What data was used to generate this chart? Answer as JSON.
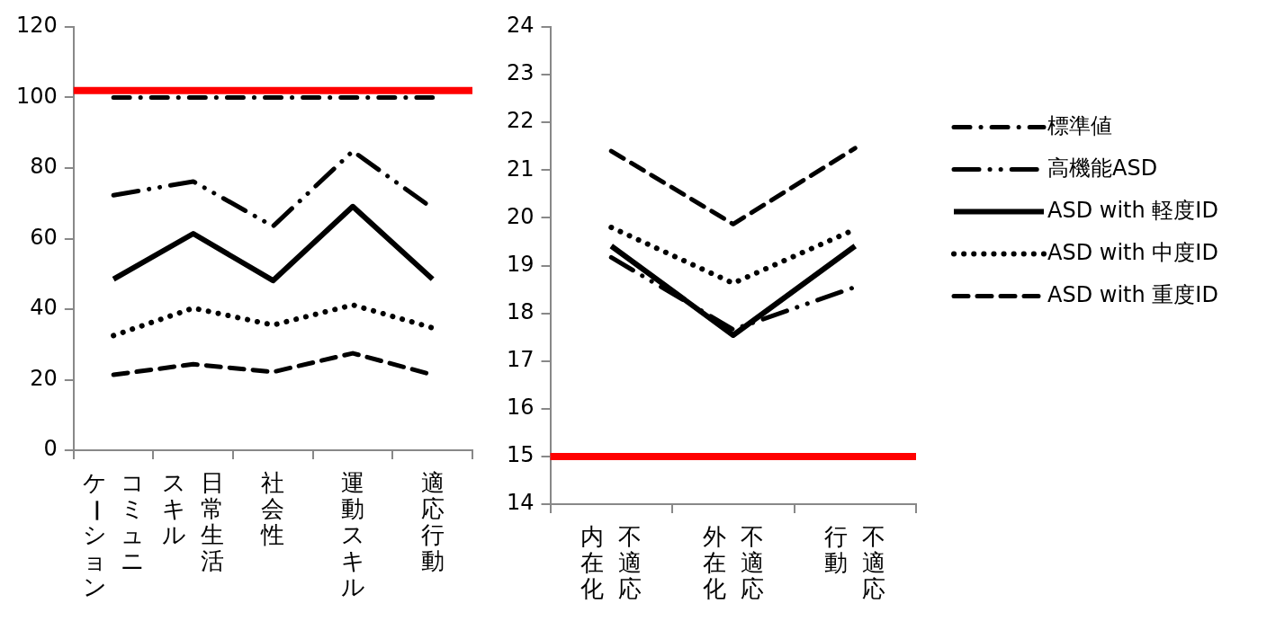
{
  "chart_data": [
    {
      "type": "line",
      "categories": [
        "コミュニケーション",
        "日常生活スキル",
        "社会性",
        "運動スキル",
        "適応行動"
      ],
      "ylim": [
        0,
        120
      ],
      "yticks": [
        0,
        20,
        40,
        60,
        80,
        100,
        120
      ],
      "grid": false,
      "legend": false,
      "ref_lines": [
        {
          "axis": "y",
          "value": 102,
          "color": "#ff0000"
        }
      ],
      "series": [
        {
          "color": "#000000",
          "line_style": "dashdot",
          "values": [
            100,
            100,
            100,
            100,
            100
          ]
        },
        {
          "color": "#000000",
          "line_style": "dashdotdot",
          "values": [
            72.3,
            76.2,
            63.5,
            84.8,
            68.6
          ]
        },
        {
          "color": "#000000",
          "line_style": "solid",
          "values": [
            48.5,
            61.4,
            48.1,
            69.1,
            48.5
          ]
        },
        {
          "color": "#000000",
          "line_style": "dotted",
          "values": [
            32.5,
            40.3,
            35.5,
            41.2,
            34.7
          ]
        },
        {
          "color": "#000000",
          "line_style": "dashed",
          "values": [
            21.4,
            24.4,
            22.2,
            27.5,
            21.4
          ]
        }
      ]
    },
    {
      "type": "line",
      "categories": [
        "不適応内在化",
        "不適応外在化",
        "不適応行動"
      ],
      "ylim": [
        14,
        24
      ],
      "yticks": [
        14,
        15,
        16,
        17,
        18,
        19,
        20,
        21,
        22,
        23,
        24
      ],
      "grid": false,
      "legend": "right",
      "ref_lines": [
        {
          "axis": "y",
          "value": 15,
          "color": "#ff0000"
        }
      ],
      "series": [
        {
          "name": "標準値",
          "color": "#000000",
          "line_style": "dashdot",
          "values": [
            null,
            null,
            null
          ]
        },
        {
          "name": "高機能ASD",
          "color": "#000000",
          "line_style": "dashdotdot",
          "values": [
            19.17,
            17.66,
            18.55
          ]
        },
        {
          "name": "ASD with 軽度ID",
          "color": "#000000",
          "line_style": "solid",
          "values": [
            19.41,
            17.54,
            19.41
          ]
        },
        {
          "name": "ASD with 中度ID",
          "color": "#000000",
          "line_style": "dotted",
          "values": [
            19.8,
            18.63,
            19.76
          ]
        },
        {
          "name": "ASD with 重度ID",
          "color": "#000000",
          "line_style": "dashed",
          "values": [
            21.4,
            19.87,
            21.46
          ]
        }
      ]
    }
  ]
}
